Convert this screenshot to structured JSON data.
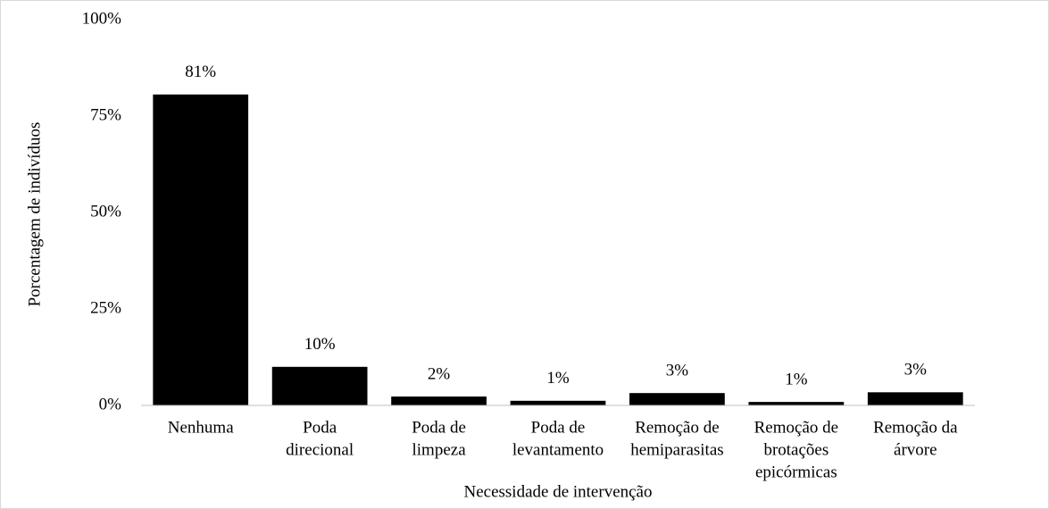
{
  "chart_data": {
    "type": "bar",
    "x_label": "Necessidade de intervenção",
    "y_label": "Porcentagem de indivíduos",
    "categories": [
      [
        "Nenhuma"
      ],
      [
        "Poda",
        "direcional"
      ],
      [
        "Poda de",
        "limpeza"
      ],
      [
        "Poda de",
        "levantamento"
      ],
      [
        "Remoção de",
        "hemiparasitas"
      ],
      [
        "Remoção de",
        "brotações",
        "epicórmicas"
      ],
      [
        "Remoção da",
        "árvore"
      ]
    ],
    "values": [
      80.6,
      10,
      2.3,
      1.2,
      3.2,
      0.9,
      3.4
    ],
    "value_labels": [
      "81%",
      "10%",
      "2%",
      "1%",
      "3%",
      "1%",
      "3%"
    ],
    "color": "#000000",
    "ylim": [
      0,
      100
    ],
    "yticks": [
      {
        "value": 0,
        "label": "0%"
      },
      {
        "value": 25,
        "label": "25%"
      },
      {
        "value": 50,
        "label": "50%"
      },
      {
        "value": 75,
        "label": "75%"
      },
      {
        "value": 100,
        "label": "100%"
      }
    ],
    "grid": false
  }
}
